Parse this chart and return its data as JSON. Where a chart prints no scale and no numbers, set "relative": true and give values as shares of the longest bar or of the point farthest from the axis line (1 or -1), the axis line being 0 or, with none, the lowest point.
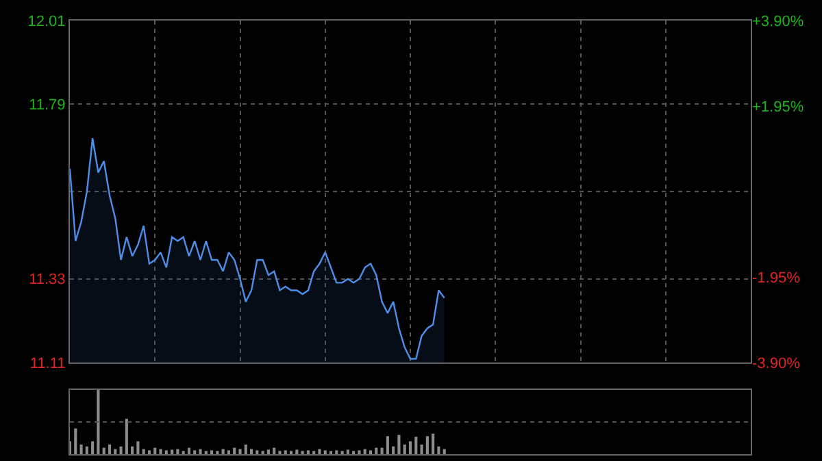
{
  "chart_data": [
    {
      "type": "area",
      "categories": [
        null,
        null,
        null,
        null,
        null,
        null,
        null,
        null,
        null,
        null,
        null,
        null,
        null,
        null,
        null,
        null,
        null,
        null,
        null,
        null,
        null,
        null,
        null,
        null,
        null,
        null,
        null,
        null,
        null,
        null,
        null,
        null,
        null,
        null,
        null,
        null,
        null,
        null,
        null,
        null,
        null,
        null,
        null,
        null,
        null,
        null,
        null,
        null,
        null,
        null,
        null,
        null,
        null,
        null,
        null,
        null,
        null,
        null,
        null,
        null,
        null,
        null,
        null,
        null,
        null,
        null,
        null,
        null,
        null,
        null,
        null,
        null,
        null,
        null,
        null,
        null,
        null,
        null,
        null,
        null,
        null,
        null,
        null,
        null,
        null,
        null,
        null,
        null,
        null,
        null,
        null,
        null,
        null,
        null,
        null,
        null,
        null,
        null,
        null,
        null,
        null,
        null,
        null,
        null,
        null,
        null,
        null,
        null,
        null,
        null,
        null,
        null,
        null,
        null,
        null,
        null,
        null,
        null,
        null,
        null,
        null
      ],
      "series": [
        {
          "color": "#4d8fe8",
          "values": [
            11.62,
            11.43,
            11.48,
            11.56,
            11.7,
            11.61,
            11.64,
            11.55,
            11.49,
            11.38,
            11.44,
            11.39,
            11.42,
            11.47,
            11.37,
            11.38,
            11.4,
            11.36,
            11.44,
            11.43,
            11.44,
            11.39,
            11.43,
            11.38,
            11.43,
            11.38,
            11.38,
            11.35,
            11.4,
            11.38,
            11.33,
            11.27,
            11.3,
            11.38,
            11.38,
            11.34,
            11.35,
            11.3,
            11.31,
            11.3,
            11.3,
            11.29,
            11.3,
            11.35,
            11.37,
            11.4,
            11.36,
            11.32,
            11.32,
            11.33,
            11.32,
            11.33,
            11.36,
            11.37,
            11.34,
            11.27,
            11.24,
            11.27,
            11.2,
            11.15,
            11.12,
            11.12,
            11.18,
            11.2,
            11.21,
            11.3,
            11.28,
            null,
            null,
            null,
            null,
            null,
            null,
            null,
            null,
            null,
            null,
            null,
            null,
            null,
            null,
            null,
            null,
            null,
            null,
            null,
            null,
            null,
            null,
            null,
            null,
            null,
            null,
            null,
            null,
            null,
            null,
            null,
            null,
            null,
            null,
            null,
            null,
            null,
            null,
            null,
            null,
            null,
            null,
            null,
            null,
            null,
            null,
            null,
            null,
            null,
            null,
            null,
            null,
            null,
            null
          ]
        }
      ],
      "ylim": [
        11.11,
        12.01
      ],
      "yticks": [
        12.01,
        11.79,
        {
          "value": 11.56,
          "label": null
        },
        11.33,
        11.11
      ],
      "y2lim": [
        -3.9,
        3.9
      ],
      "y2ticks": [
        {
          "value": 3.9,
          "label": "+3.90%"
        },
        {
          "value": 1.95,
          "label": "+1.95%"
        },
        {
          "value": 0,
          "label": null
        },
        {
          "value": -1.95,
          "label": "-1.95%"
        },
        {
          "value": -3.9,
          "label": "-3.90%"
        }
      ],
      "grid": true,
      "tick_labels": "y"
    },
    {
      "type": "bar",
      "relative": true,
      "categories": [
        null,
        null,
        null,
        null,
        null,
        null,
        null,
        null,
        null,
        null,
        null,
        null,
        null,
        null,
        null,
        null,
        null,
        null,
        null,
        null,
        null,
        null,
        null,
        null,
        null,
        null,
        null,
        null,
        null,
        null,
        null,
        null,
        null,
        null,
        null,
        null,
        null,
        null,
        null,
        null,
        null,
        null,
        null,
        null,
        null,
        null,
        null,
        null,
        null,
        null,
        null,
        null,
        null,
        null,
        null,
        null,
        null,
        null,
        null,
        null,
        null,
        null,
        null,
        null,
        null,
        null,
        null,
        null,
        null,
        null,
        null,
        null,
        null,
        null,
        null,
        null,
        null,
        null,
        null,
        null,
        null,
        null,
        null,
        null,
        null,
        null,
        null,
        null,
        null,
        null,
        null,
        null,
        null,
        null,
        null,
        null,
        null,
        null,
        null,
        null,
        null,
        null,
        null,
        null,
        null,
        null,
        null,
        null,
        null,
        null,
        null,
        null,
        null,
        null,
        null,
        null,
        null,
        null,
        null,
        null,
        null
      ],
      "series": [
        {
          "color": "#8c8c8c",
          "values": [
            0.2,
            0.4,
            0.15,
            0.12,
            0.2,
            1,
            0.1,
            0.15,
            0.08,
            0.12,
            0.55,
            0.12,
            0.2,
            0.08,
            0.06,
            0.1,
            0.08,
            0.06,
            0.07,
            0.08,
            0.05,
            0.1,
            0.06,
            0.08,
            0.05,
            0.06,
            0.05,
            0.08,
            0.06,
            0.1,
            0.08,
            0.15,
            0.08,
            0.06,
            0.05,
            0.07,
            0.1,
            0.05,
            0.06,
            0.05,
            0.07,
            0.05,
            0.06,
            0.05,
            0.08,
            0.06,
            0.05,
            0.06,
            0.05,
            0.07,
            0.05,
            0.06,
            0.08,
            0.06,
            0.1,
            0.1,
            0.28,
            0.12,
            0.3,
            0.15,
            0.2,
            0.27,
            0.15,
            0.28,
            0.32,
            0.12,
            0.08,
            null,
            null,
            null,
            null,
            null,
            null,
            null,
            null,
            null,
            null,
            null,
            null,
            null,
            null,
            null,
            null,
            null,
            null,
            null,
            null,
            null,
            null,
            null,
            null,
            null,
            null,
            null,
            null,
            null,
            null,
            null,
            null,
            null,
            null,
            null,
            null,
            null,
            null,
            null,
            null,
            null,
            null,
            null,
            null,
            null,
            null,
            null,
            null,
            null,
            null,
            null,
            null,
            null,
            null
          ]
        }
      ],
      "ref_lines": [
        {
          "axis": "y",
          "value": 0.5,
          "color": "#555555",
          "line_style": "dotted"
        }
      ],
      "tick_labels": false
    }
  ]
}
